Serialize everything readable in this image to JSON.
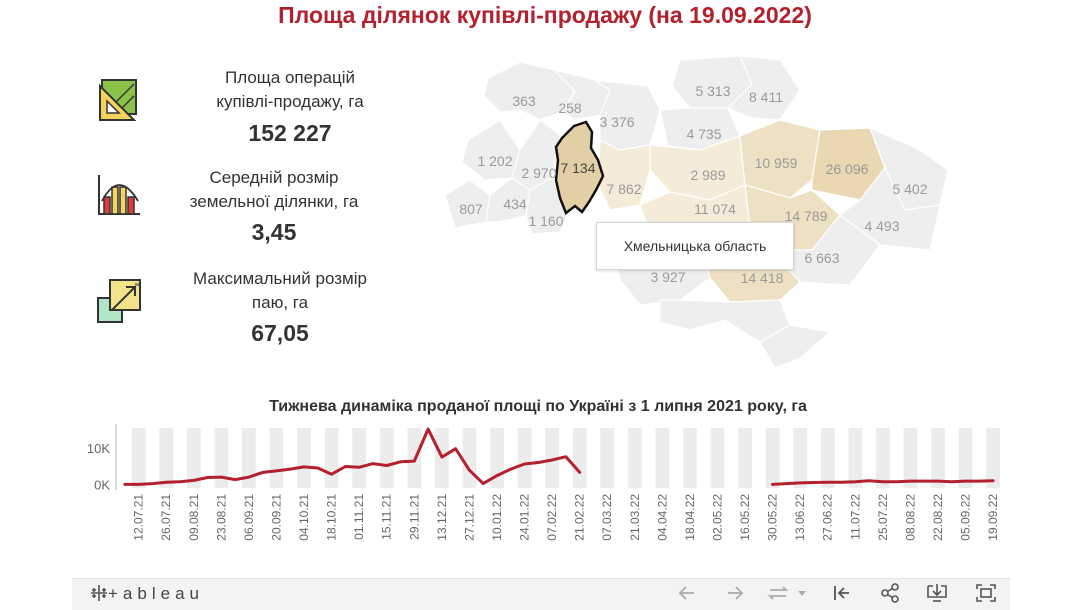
{
  "title": "Площа ділянок купівлі-продажу (на 19.09.2022)",
  "stats": [
    {
      "icon": "land-area-icon",
      "label_line1": "Площа операцій",
      "label_line2": "купівлі-продажу, га",
      "value": "152 227"
    },
    {
      "icon": "bar-chart-icon",
      "label_line1": "Середній розмір",
      "label_line2": "земельної ділянки, га",
      "value": "3,45"
    },
    {
      "icon": "resize-icon",
      "label_line1": "Максимальний розмір",
      "label_line2": "паю, га",
      "value": "67,05"
    }
  ],
  "map": {
    "region_values": [
      "363",
      "258",
      "3 376",
      "5 313",
      "8 411",
      "4 735",
      "1 202",
      "2 970",
      "7 134",
      "2 989",
      "10 959",
      "26 096",
      "807",
      "434",
      "7 862",
      "5 402",
      "1 160",
      "11 074",
      "14 789",
      "4 493",
      "6 663",
      "3 927",
      "14 418"
    ],
    "highlighted_region_value": "7 134",
    "tooltip": "Хмельницька область",
    "colors": {
      "highlight": "#e3cfa6",
      "base": "#eeeeee",
      "tint1": "#f4ecd9",
      "tint2": "#ede0c3",
      "tint3": "#e9d8b2"
    }
  },
  "chart_data": {
    "type": "line",
    "title": "Тижнева динаміка проданої площі по Україні з 1 липня 2021 року, га",
    "xlabel": "",
    "ylabel": "",
    "y_tick_labels": [
      "10K",
      "0K"
    ],
    "ylim": [
      -1000,
      15500
    ],
    "x_tick_labels": [
      "12.07.21",
      "26.07.21",
      "09.08.21",
      "23.08.21",
      "06.09.21",
      "20.09.21",
      "04.10.21",
      "18.10.21",
      "01.11.21",
      "15.11.21",
      "29.11.21",
      "13.12.21",
      "27.12.21",
      "10.01.22",
      "24.01.22",
      "07.02.22",
      "21.02.22",
      "07.03.22",
      "21.03.22",
      "04.04.22",
      "18.04.22",
      "02.05.22",
      "16.05.22",
      "30.05.22",
      "13.06.22",
      "27.06.22",
      "11.07.22",
      "25.07.22",
      "08.08.22",
      "22.08.22",
      "05.09.22",
      "19.09.22"
    ],
    "x": [
      "05.07.21",
      "12.07.21",
      "19.07.21",
      "26.07.21",
      "02.08.21",
      "09.08.21",
      "16.08.21",
      "23.08.21",
      "30.08.21",
      "06.09.21",
      "13.09.21",
      "20.09.21",
      "27.09.21",
      "04.10.21",
      "11.10.21",
      "18.10.21",
      "25.10.21",
      "01.11.21",
      "08.11.21",
      "15.11.21",
      "22.11.21",
      "29.11.21",
      "06.12.21",
      "13.12.21",
      "20.12.21",
      "27.12.21",
      "03.01.22",
      "10.01.22",
      "17.01.22",
      "24.01.22",
      "31.01.22",
      "07.02.22",
      "14.02.22",
      "21.02.22",
      "28.02.22",
      "07.03.22",
      "14.03.22",
      "21.03.22",
      "28.03.22",
      "04.04.22",
      "11.04.22",
      "18.04.22",
      "25.04.22",
      "02.05.22",
      "09.05.22",
      "16.05.22",
      "23.05.22",
      "30.05.22",
      "06.06.22",
      "13.06.22",
      "20.06.22",
      "27.06.22",
      "04.07.22",
      "11.07.22",
      "18.07.22",
      "25.07.22",
      "01.08.22",
      "08.08.22",
      "15.08.22",
      "22.08.22",
      "29.08.22",
      "05.09.22",
      "12.09.22",
      "19.09.22"
    ],
    "series": [
      {
        "values": [
          0,
          0,
          200,
          600,
          700,
          1100,
          1900,
          2000,
          1300,
          2000,
          3300,
          3700,
          4200,
          4800,
          4500,
          2800,
          4900,
          4700,
          5700,
          5200,
          6200,
          6400,
          15200,
          7500,
          9800,
          3900,
          200,
          2400,
          4200,
          5600,
          6000,
          6700,
          7600,
          3300,
          null,
          null,
          null,
          null,
          null,
          null,
          null,
          null,
          null,
          null,
          null,
          null,
          null,
          0,
          200,
          400,
          500,
          600,
          600,
          700,
          1000,
          700,
          700,
          900,
          900,
          900,
          700,
          900,
          900,
          1000
        ]
      }
    ],
    "colors": {
      "line": "#b5202e",
      "band": "#ececec",
      "axis": "#b0b0b0"
    },
    "grid": false,
    "legend": "none"
  },
  "toolbar": {
    "logo": "+ableau"
  }
}
